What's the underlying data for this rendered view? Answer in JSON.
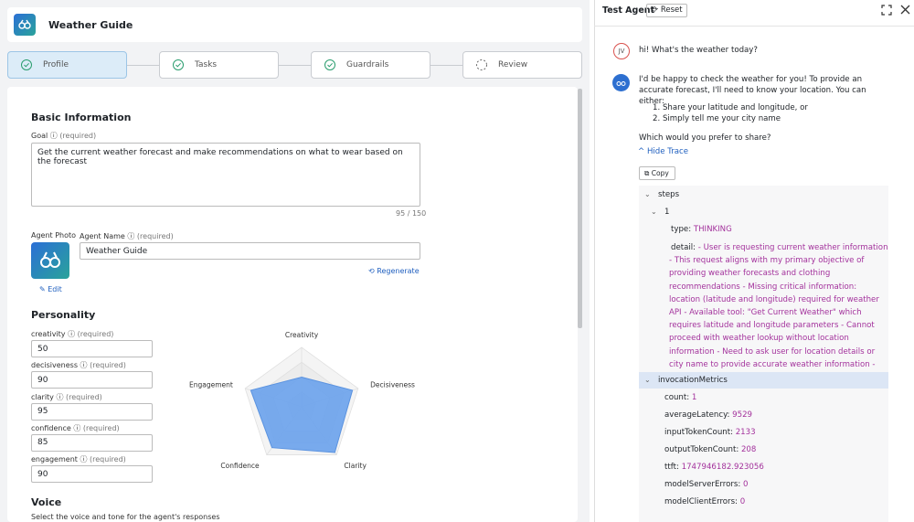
{
  "header": {
    "title": "Weather Guide"
  },
  "steps": [
    "Profile",
    "Tasks",
    "Guardrails",
    "Review"
  ],
  "form": {
    "section_basic": "Basic Information",
    "goal": {
      "label": "Goal",
      "required": "(required)",
      "value": "Get the current weather forecast and make recommendations on what to wear based on the forecast",
      "counter": "95 / 150"
    },
    "agent_photo_label": "Agent Photo",
    "edit": "Edit",
    "agent_name": {
      "label": "Agent Name",
      "required": "(required)",
      "value": "Weather Guide"
    },
    "regenerate": "Regenerate",
    "section_personality": "Personality",
    "traits": [
      {
        "label": "creativity",
        "required": "(required)",
        "value": 50
      },
      {
        "label": "decisiveness",
        "required": "(required)",
        "value": 90
      },
      {
        "label": "clarity",
        "required": "(required)",
        "value": 95
      },
      {
        "label": "confidence",
        "required": "(required)",
        "value": 85
      },
      {
        "label": "engagement",
        "required": "(required)",
        "value": 90
      }
    ],
    "radar": {
      "axes": [
        "Creativity",
        "Decisiveness",
        "Clarity",
        "Confidence",
        "Engagement"
      ],
      "rlim": [
        0,
        100
      ]
    },
    "section_voice": "Voice",
    "voice_hint": "Select the voice and tone for the agent's responses"
  },
  "chat": {
    "title": "Test Agent",
    "reset": "Reset",
    "user": {
      "initials": "JV",
      "message": "hi! What's the weather today?"
    },
    "agent": {
      "intro": "I'd be happy to check the weather for you! To provide an accurate forecast, I'll need to know your location. You can either:",
      "options": [
        "Share your latitude and longitude, or",
        "Simply tell me your city name"
      ],
      "question": "Which would you prefer to share?",
      "hide_trace": "Hide Trace",
      "copy": "Copy"
    },
    "trace": {
      "steps_key": "steps",
      "step_index": "1",
      "type_key": "type:",
      "type_value": "THINKING",
      "detail_key": "detail:",
      "detail_value": "- User is requesting current weather information - This request aligns with my primary objective of providing weather forecasts and clothing recommendations - Missing critical information: location (latitude and longitude) required for weather API - Available tool: \"Get Current Weather\" which requires latitude and longitude parameters - Cannot proceed with weather lookup without location information - Need to ask user for location details or city name to provide accurate weather information - Will need to make API call once location is provided",
      "metrics_key": "invocationMetrics",
      "metrics": [
        {
          "key": "count:",
          "value": "1"
        },
        {
          "key": "averageLatency:",
          "value": "9529"
        },
        {
          "key": "inputTokenCount:",
          "value": "2133"
        },
        {
          "key": "outputTokenCount:",
          "value": "208"
        },
        {
          "key": "ttft:",
          "value": "1747946182.923056"
        },
        {
          "key": "modelServerErrors:",
          "value": "0"
        },
        {
          "key": "modelClientErrors:",
          "value": "0"
        }
      ]
    }
  }
}
